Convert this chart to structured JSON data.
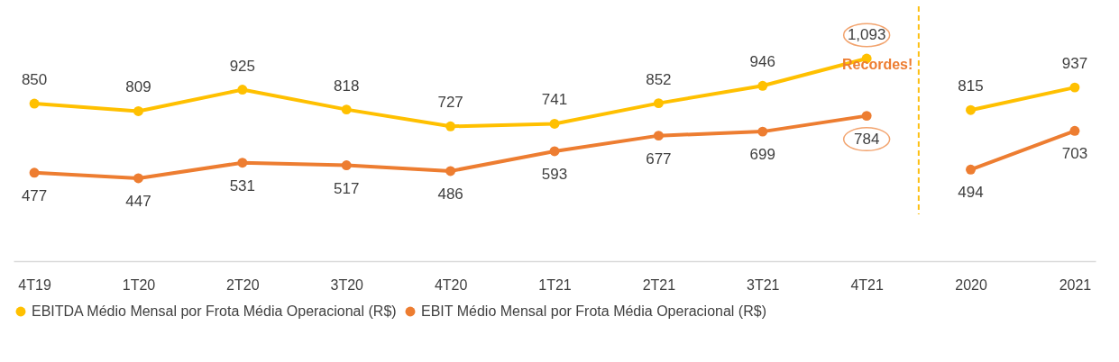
{
  "chart_data": {
    "type": "line",
    "categories": [
      "4T19",
      "1T20",
      "2T20",
      "3T20",
      "4T20",
      "1T21",
      "2T21",
      "3T21",
      "4T21",
      "2020",
      "2021"
    ],
    "series": [
      {
        "name": "EBITDA Médio Mensal por Frota Média Operacional (R$)",
        "color": "#ffc000",
        "values": [
          850,
          809,
          925,
          818,
          727,
          741,
          852,
          946,
          1093,
          null,
          null
        ],
        "value_labels": [
          "850",
          "809",
          "925",
          "818",
          "727",
          "741",
          "852",
          "946",
          "1,093",
          null,
          null
        ]
      },
      {
        "name": "EBIT Médio Mensal por Frota Média Operacional (R$)",
        "color": "#ed7d31",
        "values": [
          477,
          447,
          531,
          517,
          486,
          593,
          677,
          699,
          784,
          null,
          null
        ],
        "value_labels": [
          "477",
          "447",
          "531",
          "517",
          "486",
          "593",
          "677",
          "699",
          "784",
          null,
          null
        ]
      },
      {
        "color": "#ffc000",
        "values": [
          null,
          null,
          null,
          null,
          null,
          null,
          null,
          null,
          null,
          815,
          937
        ],
        "value_labels": [
          null,
          null,
          null,
          null,
          null,
          null,
          null,
          null,
          null,
          "815",
          "937"
        ]
      },
      {
        "color": "#ed7d31",
        "values": [
          null,
          null,
          null,
          null,
          null,
          null,
          null,
          null,
          null,
          494,
          703
        ],
        "value_labels": [
          null,
          null,
          null,
          null,
          null,
          null,
          null,
          null,
          null,
          "494",
          "703"
        ]
      }
    ],
    "tick_labels": "x",
    "grid": false,
    "data_labels": true,
    "legend": "bottom",
    "marker": "circle",
    "line_style": "solid",
    "ref_lines": [
      {
        "axis": "x",
        "value": "2020",
        "color": "#fdc012",
        "line_style": "dashed"
      }
    ],
    "annotations": [
      "Recordes!"
    ]
  }
}
